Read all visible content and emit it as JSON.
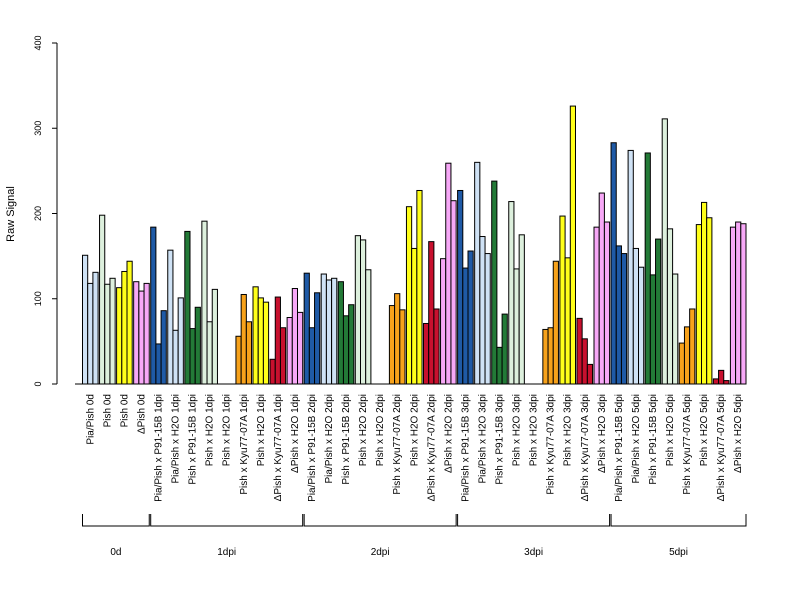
{
  "chart_data": {
    "type": "bar",
    "title": "",
    "xlabel": "",
    "ylabel": "Raw Signal",
    "ylim": [
      0,
      400
    ],
    "yticks": [
      0,
      100,
      200,
      300,
      400
    ],
    "grid": false,
    "legend": "none",
    "categories": [
      "Pia/Pish 0d",
      "Pish 0d",
      "Pish 0d",
      "ΔPish 0d",
      "Pia/Pish x P91-15B 1dpi",
      "Pia/Pish x H2O 1dpi",
      "Pish x P91-15B 1dpi",
      "Pish x H2O 1dpi",
      "Pish x H2O 1dpi",
      "Pish x Kyu77-07A 1dpi",
      "Pish x H2O 1dpi",
      "ΔPish x Kyu77-07A 1dpi",
      "ΔPish x H2O 1dpi",
      "Pia/Pish x P91-15B 2dpi",
      "Pia/Pish x H2O 2dpi",
      "Pish x P91-15B 2dpi",
      "Pish x H2O 2dpi",
      "Pish x H2O 2dpi",
      "Pish x Kyu77-07A 2dpi",
      "Pish x H2O 2dpi",
      "ΔPish x Kyu77-07A 2dpi",
      "ΔPish x H2O 2dpi",
      "Pia/Pish x P91-15B 3dpi",
      "Pia/Pish x H2O 3dpi",
      "Pish x P91-15B 3dpi",
      "Pish x H2O 3dpi",
      "Pish x H2O 3dpi",
      "Pish x Kyu77-07A 3dpi",
      "Pish x H2O 3dpi",
      "ΔPish x Kyu77-07A 3dpi",
      "ΔPish x H2O 3dpi",
      "Pia/Pish x P91-15B 5dpi",
      "Pia/Pish x H2O 5dpi",
      "Pish x P91-15B 5dpi",
      "Pish x H2O 5dpi",
      "Pish x Kyu77-07A 5dpi",
      "Pish x H2O 5dpi",
      "ΔPish x Kyu77-07A 5dpi",
      "ΔPish x H2O 5dpi"
    ],
    "colors": [
      "#cfe2f5",
      "#ddf0dd",
      "#ffff1a",
      "#f7a8f7",
      "#1f5aa6",
      "#cfe2f5",
      "#237a37",
      "#ddf0dd",
      "#ddf0dd",
      "#f7a21b",
      "#ffff1a",
      "#c8102e",
      "#f7a8f7",
      "#1f5aa6",
      "#cfe2f5",
      "#237a37",
      "#ddf0dd",
      "#ddf0dd",
      "#f7a21b",
      "#ffff1a",
      "#c8102e",
      "#f7a8f7",
      "#1f5aa6",
      "#cfe2f5",
      "#237a37",
      "#ddf0dd",
      "#ddf0dd",
      "#f7a21b",
      "#ffff1a",
      "#c8102e",
      "#f7a8f7",
      "#1f5aa6",
      "#cfe2f5",
      "#237a37",
      "#ddf0dd",
      "#f7a21b",
      "#ffff1a",
      "#c8102e",
      "#f7a8f7"
    ],
    "values": [
      [
        151,
        118,
        131
      ],
      [
        198,
        117,
        124
      ],
      [
        113,
        132,
        144
      ],
      [
        120,
        109,
        118
      ],
      [
        184,
        47,
        86
      ],
      [
        157,
        63,
        101
      ],
      [
        179,
        65,
        90
      ],
      [
        191,
        73,
        111
      ],
      [
        0,
        0,
        0
      ],
      [
        56,
        105,
        73
      ],
      [
        114,
        101,
        96
      ],
      [
        29,
        102,
        66
      ],
      [
        78,
        112,
        84
      ],
      [
        130,
        66,
        107
      ],
      [
        129,
        122,
        124
      ],
      [
        120,
        80,
        93
      ],
      [
        174,
        169,
        134
      ],
      [
        0,
        0,
        0
      ],
      [
        92,
        106,
        87
      ],
      [
        208,
        159,
        227
      ],
      [
        71,
        167,
        88
      ],
      [
        147,
        259,
        215
      ],
      [
        227,
        136,
        156
      ],
      [
        260,
        173,
        153
      ],
      [
        238,
        43,
        82
      ],
      [
        214,
        135,
        175
      ],
      [
        0,
        0,
        0
      ],
      [
        64,
        66,
        144
      ],
      [
        197,
        148,
        326
      ],
      [
        77,
        53,
        23
      ],
      [
        184,
        224,
        190
      ],
      [
        283,
        162,
        153
      ],
      [
        274,
        159,
        137
      ],
      [
        271,
        128,
        170
      ],
      [
        311,
        182,
        129
      ],
      [
        48,
        67,
        88
      ],
      [
        187,
        213,
        195
      ],
      [
        6,
        16,
        4
      ],
      [
        184,
        190,
        188
      ]
    ],
    "groups": [
      {
        "label": "0d",
        "start": 0,
        "end": 3
      },
      {
        "label": "1dpi",
        "start": 4,
        "end": 12
      },
      {
        "label": "2dpi",
        "start": 13,
        "end": 21
      },
      {
        "label": "3dpi",
        "start": 22,
        "end": 30
      },
      {
        "label": "5dpi",
        "start": 31,
        "end": 38
      }
    ]
  }
}
